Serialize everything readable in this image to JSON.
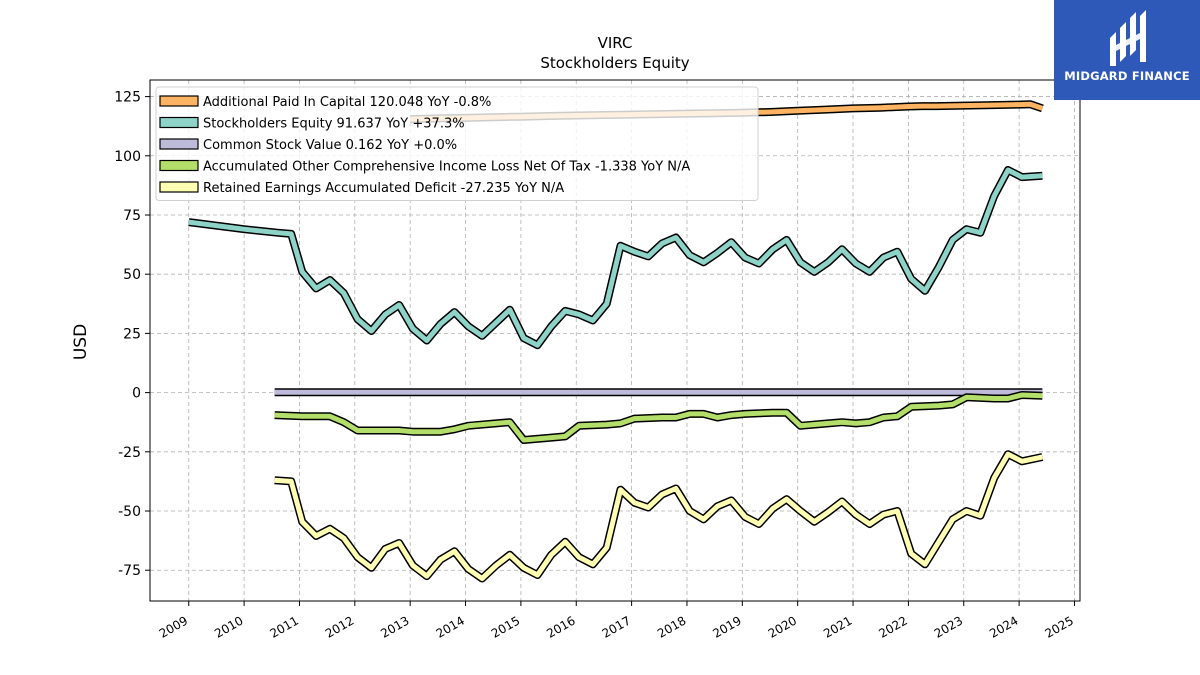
{
  "logo": {
    "name": "MIDGARD FINANCE",
    "bg_color": "#2e59b8"
  },
  "chart_data": {
    "type": "line",
    "title": "VIRC",
    "subtitle": "Stockholders  Equity",
    "ylabel": "USD",
    "xlim": [
      2008.3,
      2025.1
    ],
    "ylim": [
      -88,
      132
    ],
    "y_ticks": [
      125,
      100,
      75,
      50,
      25,
      0,
      -25,
      -50,
      -75
    ],
    "x_ticks": [
      "2009",
      "2010",
      "2011",
      "2012",
      "2013",
      "2014",
      "2015",
      "2016",
      "2017",
      "2018",
      "2019",
      "2020",
      "2021",
      "2022",
      "2023",
      "2024",
      "2025"
    ],
    "grid": true,
    "legend_placement": "top-left",
    "series": [
      {
        "name": "Additional Paid In Capital",
        "label": "Additional Paid In Capital  120.048 YoY -0.8%",
        "color": "#fdb462",
        "x": [
          2013.0,
          2013.5,
          2014.0,
          2014.5,
          2015.0,
          2015.5,
          2016.0,
          2016.5,
          2017.0,
          2017.5,
          2018.0,
          2018.5,
          2019.0,
          2019.5,
          2020.0,
          2020.5,
          2021.0,
          2021.5,
          2022.0,
          2022.25,
          2022.5,
          2023.0,
          2023.5,
          2024.0,
          2024.2,
          2024.42
        ],
        "y": [
          115.5,
          115.8,
          116.0,
          116.3,
          116.5,
          116.8,
          117.0,
          117.2,
          117.4,
          117.6,
          117.8,
          118.0,
          118.2,
          118.5,
          119.0,
          119.5,
          120.0,
          120.3,
          120.8,
          121.0,
          121.0,
          121.2,
          121.4,
          121.6,
          121.8,
          120.0
        ]
      },
      {
        "name": "Stockholders Equity",
        "label": "Stockholders Equity  91.637 YoY +37.3%",
        "color": "#8dd3c7",
        "x": [
          2009.0,
          2010.0,
          2010.6,
          2010.85,
          2011.05,
          2011.3,
          2011.55,
          2011.8,
          2012.05,
          2012.3,
          2012.55,
          2012.8,
          2013.05,
          2013.3,
          2013.55,
          2013.8,
          2014.05,
          2014.3,
          2014.55,
          2014.8,
          2015.05,
          2015.3,
          2015.55,
          2015.8,
          2016.05,
          2016.3,
          2016.55,
          2016.8,
          2017.05,
          2017.3,
          2017.55,
          2017.8,
          2018.05,
          2018.3,
          2018.55,
          2018.8,
          2019.05,
          2019.3,
          2019.55,
          2019.8,
          2020.05,
          2020.3,
          2020.55,
          2020.8,
          2021.05,
          2021.3,
          2021.55,
          2021.8,
          2022.05,
          2022.3,
          2022.55,
          2022.8,
          2023.05,
          2023.3,
          2023.55,
          2023.8,
          2024.05,
          2024.42
        ],
        "y": [
          72,
          69,
          67.5,
          67,
          51,
          44,
          47.5,
          42,
          31,
          26,
          33,
          37,
          27,
          22,
          29,
          34,
          28,
          24,
          29.5,
          35,
          23,
          20,
          28,
          34.5,
          33,
          30.5,
          37.5,
          62,
          59.5,
          57.5,
          63,
          65.5,
          58,
          55,
          59,
          63.5,
          57,
          54.5,
          60.5,
          64.5,
          55,
          51,
          55,
          60.5,
          54.5,
          51,
          57,
          59.5,
          48,
          43,
          53,
          64.5,
          69,
          67.5,
          83,
          94,
          91,
          91.6
        ]
      },
      {
        "name": "Common Stock Value",
        "label": "Common Stock Value  0.162 YoY +0.0%",
        "color": "#bebada",
        "x": [
          2010.55,
          2024.42
        ],
        "y": [
          0.162,
          0.162
        ]
      },
      {
        "name": "Accumulated Other Comprehensive Income Loss Net Of Tax",
        "label": "Accumulated Other Comprehensive Income Loss Net Of Tax  -1.338 YoY N/A",
        "color": "#b3de69",
        "x": [
          2010.55,
          2011.05,
          2011.55,
          2011.8,
          2012.05,
          2012.55,
          2012.8,
          2013.05,
          2013.55,
          2013.8,
          2014.05,
          2014.55,
          2014.8,
          2015.05,
          2015.55,
          2015.8,
          2016.05,
          2016.55,
          2016.8,
          2017.05,
          2017.55,
          2017.8,
          2018.05,
          2018.3,
          2018.55,
          2018.8,
          2019.05,
          2019.55,
          2019.8,
          2020.05,
          2020.55,
          2020.8,
          2021.05,
          2021.3,
          2021.55,
          2021.8,
          2022.05,
          2022.55,
          2022.8,
          2023.05,
          2023.55,
          2023.8,
          2024.05,
          2024.42
        ],
        "y": [
          -9.5,
          -10,
          -10,
          -12.5,
          -16,
          -16,
          -16,
          -16.5,
          -16.5,
          -15.5,
          -14,
          -13,
          -12.5,
          -20,
          -19,
          -18.5,
          -14,
          -13.5,
          -13,
          -11,
          -10.5,
          -10.5,
          -9,
          -9,
          -10.5,
          -9.5,
          -9,
          -8.5,
          -8.5,
          -14,
          -13,
          -12.5,
          -13,
          -12.5,
          -10.5,
          -10,
          -6,
          -5.5,
          -5,
          -2,
          -2.5,
          -2.5,
          -1,
          -1.3
        ]
      },
      {
        "name": "Retained Earnings Accumulated Deficit",
        "label": "Retained Earnings Accumulated Deficit  -27.235 YoY N/A",
        "color": "#ffffb3",
        "x": [
          2010.55,
          2010.85,
          2011.05,
          2011.3,
          2011.55,
          2011.8,
          2012.05,
          2012.3,
          2012.55,
          2012.8,
          2013.05,
          2013.3,
          2013.55,
          2013.8,
          2014.05,
          2014.3,
          2014.55,
          2014.8,
          2015.05,
          2015.3,
          2015.55,
          2015.8,
          2016.05,
          2016.3,
          2016.55,
          2016.8,
          2017.05,
          2017.3,
          2017.55,
          2017.8,
          2018.05,
          2018.3,
          2018.55,
          2018.8,
          2019.05,
          2019.3,
          2019.55,
          2019.8,
          2020.05,
          2020.3,
          2020.55,
          2020.8,
          2021.05,
          2021.3,
          2021.55,
          2021.8,
          2022.05,
          2022.3,
          2022.55,
          2022.8,
          2023.05,
          2023.3,
          2023.55,
          2023.8,
          2024.05,
          2024.42
        ],
        "y": [
          -37,
          -37.5,
          -54.5,
          -60.5,
          -57.5,
          -61.5,
          -69.5,
          -74,
          -66,
          -63.5,
          -73,
          -77.5,
          -70.5,
          -67,
          -74.5,
          -78.5,
          -73,
          -68.5,
          -74,
          -77,
          -68.5,
          -63,
          -69.5,
          -72.5,
          -65.5,
          -41,
          -46.5,
          -48.5,
          -43,
          -40.5,
          -50,
          -53.5,
          -48,
          -45.5,
          -52.5,
          -55.5,
          -49,
          -45,
          -50,
          -54.5,
          -50.5,
          -46,
          -51.5,
          -55.5,
          -51.5,
          -50,
          -68,
          -72.5,
          -63,
          -53.5,
          -50,
          -52,
          -36,
          -26,
          -29,
          -27.2
        ]
      }
    ]
  }
}
